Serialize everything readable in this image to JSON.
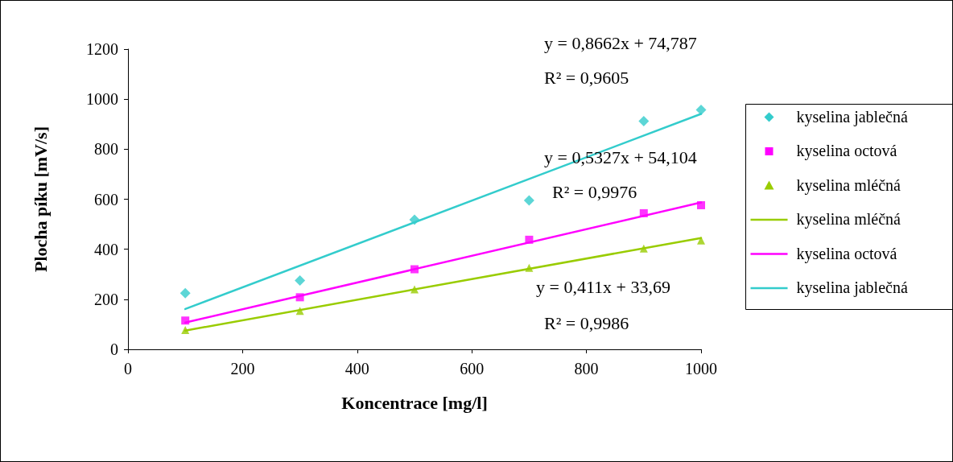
{
  "chart_data": {
    "type": "scatter",
    "xlabel": "Koncentrace [mg/l]",
    "ylabel": "Plocha píku [mV/s]",
    "xlim": [
      0,
      1000
    ],
    "xticks": [
      0,
      200,
      400,
      600,
      800,
      1000
    ],
    "ylim": [
      0,
      1200
    ],
    "yticks": [
      0,
      200,
      400,
      600,
      800,
      1000,
      1200
    ],
    "grid": false,
    "legend": "right",
    "series": [
      {
        "name": "kyselina jablečná",
        "marker": "diamond",
        "color": "#33cccc",
        "x": [
          100,
          300,
          500,
          700,
          900,
          1000
        ],
        "values": [
          224,
          275,
          518,
          595,
          912,
          957
        ]
      },
      {
        "name": "kyselina octová",
        "marker": "square",
        "color": "#ff00ff",
        "x": [
          100,
          300,
          500,
          700,
          900,
          1000
        ],
        "values": [
          115,
          208,
          320,
          438,
          544,
          576
        ]
      },
      {
        "name": "kyselina mléčná",
        "marker": "triangle",
        "color": "#99cc00",
        "x": [
          100,
          300,
          500,
          700,
          900,
          1000
        ],
        "values": [
          77,
          154,
          240,
          326,
          403,
          435
        ]
      },
      {
        "name": "kyselina mléčná",
        "type": "line",
        "marker": "none",
        "color": "#99cc00",
        "x": [
          100,
          1000
        ],
        "values": [
          75,
          445
        ]
      },
      {
        "name": "kyselina octová",
        "type": "line",
        "marker": "none",
        "color": "#ff00ff",
        "x": [
          100,
          1000
        ],
        "values": [
          107,
          587
        ]
      },
      {
        "name": "kyselina jablečná",
        "type": "line",
        "marker": "none",
        "color": "#33cccc",
        "x": [
          100,
          1000
        ],
        "values": [
          161,
          941
        ]
      }
    ],
    "annotations": [
      "y = 0,8662x + 74,787",
      "R² = 0,9605",
      "y = 0,5327x + 54,104",
      "R² = 0,9976",
      "y = 0,411x + 33,69",
      "R² = 0,9986"
    ]
  }
}
